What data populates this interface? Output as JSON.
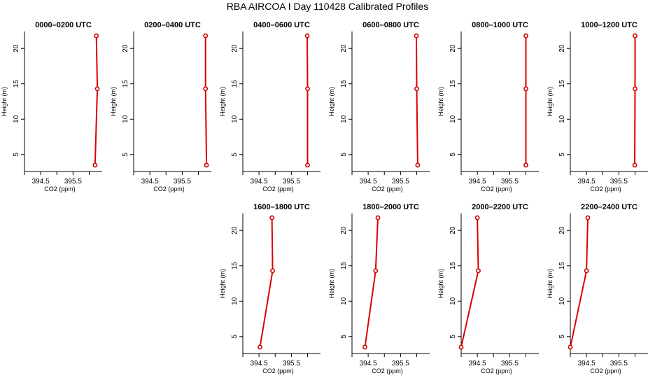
{
  "title": "RBA AIRCOA I  Day 110428  Calibrated Profiles",
  "chart_data": [
    {
      "type": "line",
      "title": "0000–0200 UTC",
      "xlabel": "CO2 (ppm)",
      "ylabel": "Height (m)",
      "xlim": [
        394.0,
        396.4
      ],
      "ylim": [
        3,
        22
      ],
      "x_ticks": [
        "394.5",
        "395.5"
      ],
      "y_ticks": [
        5,
        10,
        15,
        20
      ],
      "x": [
        396.18,
        396.25,
        396.22
      ],
      "y": [
        3.5,
        14.3,
        21.8
      ]
    },
    {
      "type": "line",
      "title": "0200–0400 UTC",
      "xlabel": "CO2 (ppm)",
      "ylabel": "Height (m)",
      "xlim": [
        394.0,
        396.4
      ],
      "ylim": [
        3,
        22
      ],
      "x_ticks": [
        "394.5",
        "395.5"
      ],
      "y_ticks": [
        5,
        10,
        15,
        20
      ],
      "x": [
        396.25,
        396.22,
        396.22
      ],
      "y": [
        3.5,
        14.3,
        21.8
      ]
    },
    {
      "type": "line",
      "title": "0400–0600 UTC",
      "xlabel": "CO2 (ppm)",
      "ylabel": "Height (m)",
      "xlim": [
        394.0,
        396.4
      ],
      "ylim": [
        3,
        22
      ],
      "x_ticks": [
        "394.5",
        "395.5"
      ],
      "y_ticks": [
        5,
        10,
        15,
        20
      ],
      "x": [
        396.0,
        396.0,
        395.99
      ],
      "y": [
        3.5,
        14.3,
        21.8
      ]
    },
    {
      "type": "line",
      "title": "0600–0800 UTC",
      "xlabel": "CO2 (ppm)",
      "ylabel": "Height (m)",
      "xlim": [
        394.0,
        396.4
      ],
      "ylim": [
        3,
        22
      ],
      "x_ticks": [
        "394.5",
        "395.5"
      ],
      "y_ticks": [
        5,
        10,
        15,
        20
      ],
      "x": [
        396.03,
        396.0,
        395.99
      ],
      "y": [
        3.5,
        14.3,
        21.8
      ]
    },
    {
      "type": "line",
      "title": "0800–1000 UTC",
      "xlabel": "CO2 (ppm)",
      "ylabel": "Height (m)",
      "xlim": [
        394.0,
        396.4
      ],
      "ylim": [
        3,
        22
      ],
      "x_ticks": [
        "394.5",
        "395.5"
      ],
      "y_ticks": [
        5,
        10,
        15,
        20
      ],
      "x": [
        396.0,
        396.0,
        396.0
      ],
      "y": [
        3.5,
        14.3,
        21.8
      ]
    },
    {
      "type": "line",
      "title": "1000–1200 UTC",
      "xlabel": "CO2 (ppm)",
      "ylabel": "Height (m)",
      "xlim": [
        394.0,
        396.4
      ],
      "ylim": [
        3,
        22
      ],
      "x_ticks": [
        "394.5",
        "395.5"
      ],
      "y_ticks": [
        5,
        10,
        15,
        20
      ],
      "x": [
        395.99,
        396.0,
        396.0
      ],
      "y": [
        3.5,
        14.3,
        21.8
      ]
    },
    {
      "type": "line",
      "title": "1600–1800 UTC",
      "xlabel": "CO2 (ppm)",
      "ylabel": "Height (m)",
      "xlim": [
        394.0,
        396.4
      ],
      "ylim": [
        3,
        22
      ],
      "x_ticks": [
        "394.5",
        "395.5"
      ],
      "y_ticks": [
        5,
        10,
        15,
        20
      ],
      "x": [
        394.53,
        394.92,
        394.9
      ],
      "y": [
        3.5,
        14.3,
        21.8
      ]
    },
    {
      "type": "line",
      "title": "1800–2000 UTC",
      "xlabel": "CO2 (ppm)",
      "ylabel": "Height (m)",
      "xlim": [
        394.0,
        396.4
      ],
      "ylim": [
        3,
        22
      ],
      "x_ticks": [
        "394.5",
        "395.5"
      ],
      "y_ticks": [
        5,
        10,
        15,
        20
      ],
      "x": [
        394.4,
        394.73,
        394.8
      ],
      "y": [
        3.5,
        14.3,
        21.8
      ]
    },
    {
      "type": "line",
      "title": "2000–2200 UTC",
      "xlabel": "CO2 (ppm)",
      "ylabel": "Height (m)",
      "xlim": [
        394.0,
        396.4
      ],
      "ylim": [
        3,
        22
      ],
      "x_ticks": [
        "394.5",
        "395.5"
      ],
      "y_ticks": [
        5,
        10,
        15,
        20
      ],
      "x": [
        394.0,
        394.53,
        394.5
      ],
      "y": [
        3.5,
        14.3,
        21.8
      ]
    },
    {
      "type": "line",
      "title": "2200–2400 UTC",
      "xlabel": "CO2 (ppm)",
      "ylabel": "Height (m)",
      "xlim": [
        394.0,
        396.4
      ],
      "ylim": [
        3,
        22
      ],
      "x_ticks": [
        "394.5",
        "395.5"
      ],
      "y_ticks": [
        5,
        10,
        15,
        20
      ],
      "x": [
        394.0,
        394.5,
        394.54
      ],
      "y": [
        3.5,
        14.3,
        21.8
      ]
    }
  ],
  "colors": {
    "line": "#dd0000",
    "marker": "#cc0000",
    "axis": "#000000"
  }
}
